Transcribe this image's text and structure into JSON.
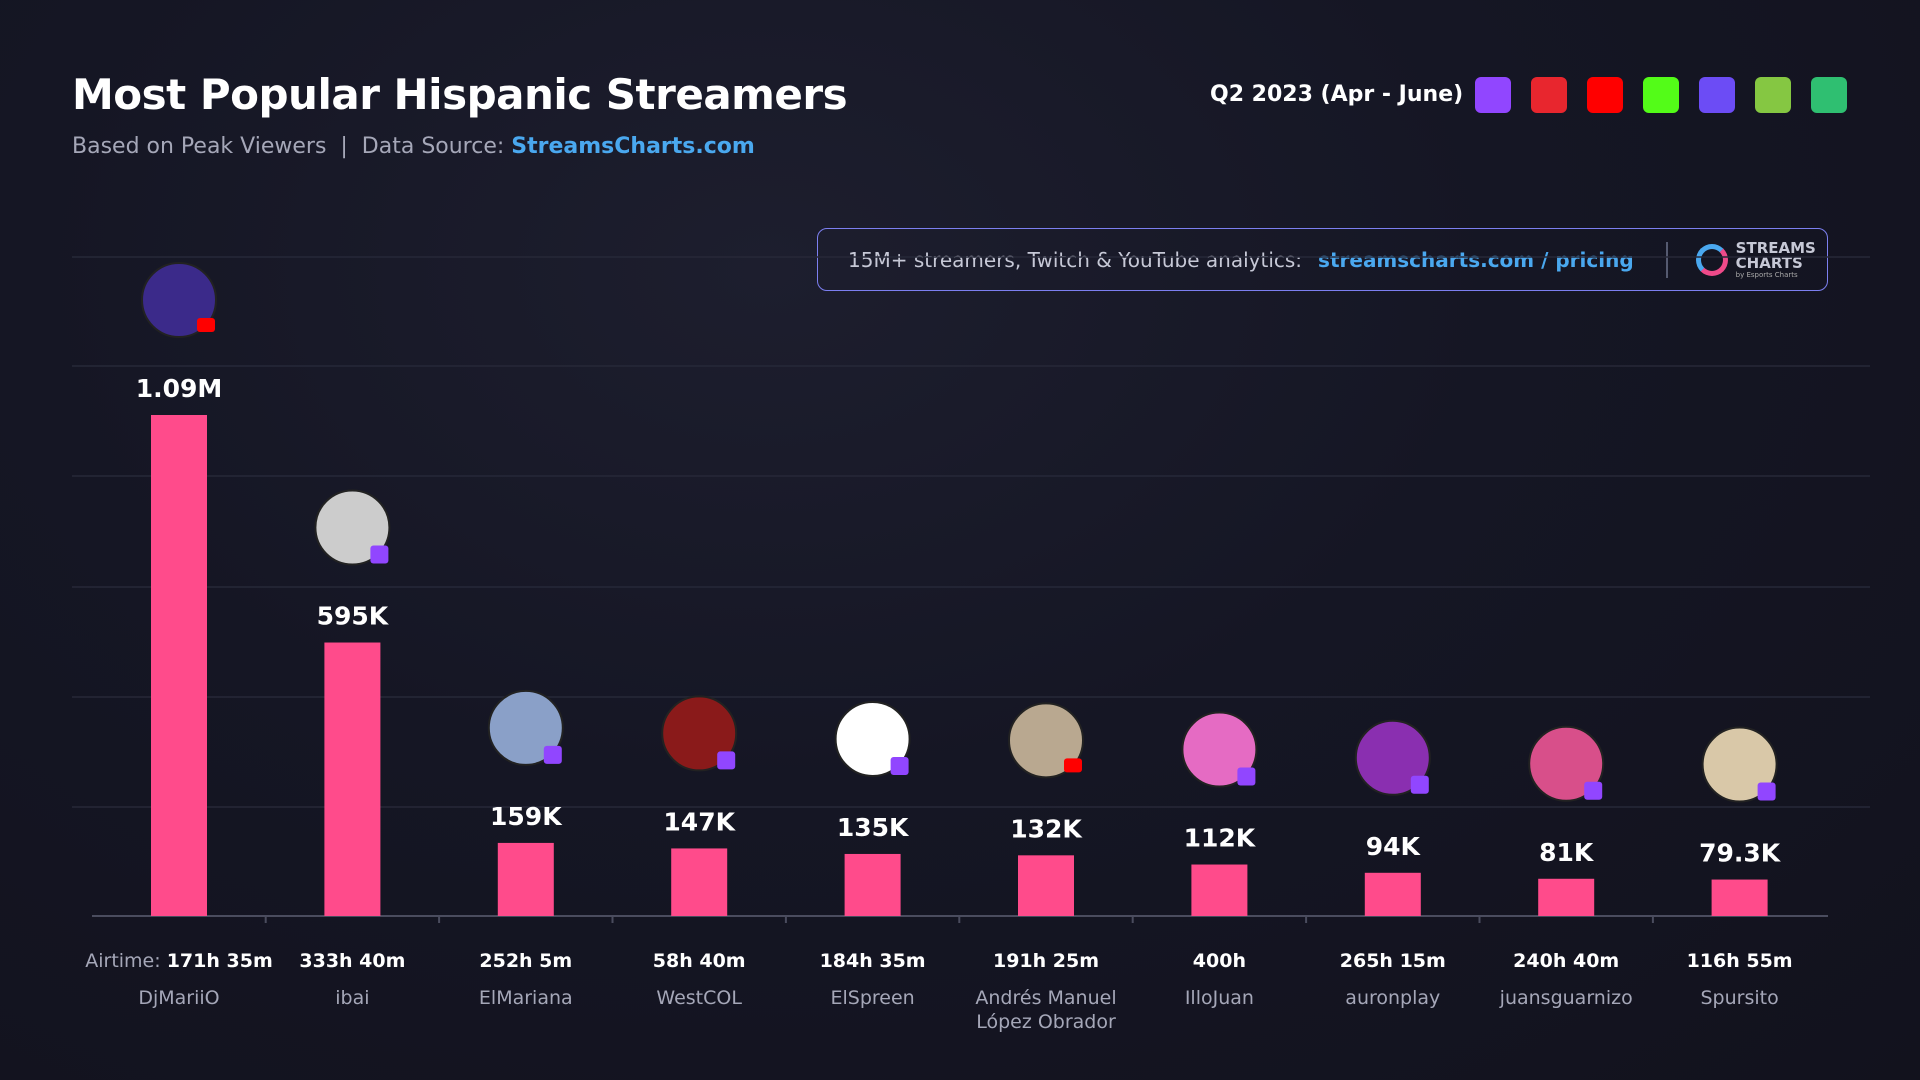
{
  "header": {
    "title": "Most Popular Hispanic Streamers",
    "subtitle_prefix": "Based on Peak Viewers  |  Data Source: ",
    "source": "StreamsCharts.com",
    "period": "Q2 2023 (Apr - June)"
  },
  "platforms": [
    {
      "name": "twitch-icon",
      "color": "#9146ff"
    },
    {
      "name": "vk-play-icon",
      "color": "#e8262e"
    },
    {
      "name": "youtube-icon",
      "color": "#ff0000"
    },
    {
      "name": "kick-icon",
      "color": "#53fc18"
    },
    {
      "name": "trovo-icon",
      "color": "#6c4cf5"
    },
    {
      "name": "rumble-icon",
      "color": "#85c742"
    },
    {
      "name": "nimo-icon",
      "color": "#2fbf71"
    }
  ],
  "banner": {
    "text": "15M+ streamers, Twitch & YouTube analytics:",
    "link": "streamscharts.com / pricing",
    "logo_line1": "STREAMS",
    "logo_line2": "CHARTS",
    "logo_sub": "by Esports Charts"
  },
  "chart_data": {
    "type": "bar",
    "title": "Most Popular Hispanic Streamers",
    "airtime_prefix": "Airtime: ",
    "categories": [
      "DjMariiO",
      "ibai",
      "ElMariana",
      "WestCOL",
      "ElSpreen",
      "Andrés Manuel López Obrador",
      "IlloJuan",
      "auronplay",
      "juansguarnizo",
      "Spursito"
    ],
    "values": [
      1090000,
      595000,
      159000,
      147000,
      135000,
      132000,
      112000,
      94000,
      81000,
      79300
    ],
    "labels": [
      "1.09M",
      "595K",
      "159K",
      "147K",
      "135K",
      "132K",
      "112K",
      "94K",
      "81K",
      "79.3K"
    ],
    "airtime": [
      "171h 35m",
      "333h 40m",
      "252h 5m",
      "58h 40m",
      "184h 35m",
      "191h 25m",
      "400h",
      "265h 15m",
      "240h 40m",
      "116h 55m"
    ],
    "platform": [
      "youtube",
      "twitch",
      "twitch",
      "twitch",
      "twitch",
      "youtube",
      "twitch",
      "twitch",
      "twitch",
      "twitch"
    ],
    "bar_color": "#ff4b8b",
    "grid": true
  }
}
